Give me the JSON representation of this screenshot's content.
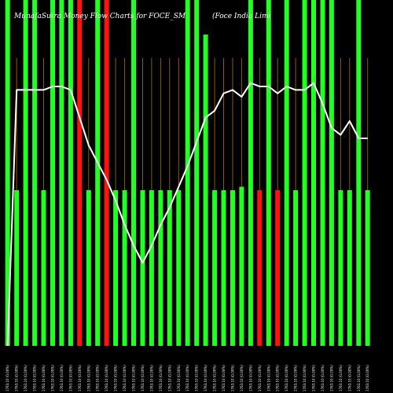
{
  "chart_data": {
    "type": "bar",
    "title": "MunafaSutra Money Flow Charts for FOCE_SM",
    "subtitle": "(Foce India Limi",
    "ylim": [
      0,
      100
    ],
    "colors": {
      "background": "#000000",
      "up": "#22ff22",
      "down": "#ff1111",
      "volume_line": "#8a5a12",
      "price_line": "#ffffff",
      "tick_text": "#ffffff"
    },
    "categories": [
      "1763.10 (0.00%)",
      "1763.10 (0.00%)",
      "1763.10 (0.00%)",
      "1763.10 (0.00%)",
      "1763.10 (0.00%)",
      "1763.10 (0.00%)",
      "1763.10 (0.00%)",
      "1763.10 (0.00%)",
      "1763.10 (0.00%)",
      "1763.10 (0.00%)",
      "1763.10 (0.00%)",
      "1763.10 (0.00%)",
      "1763.10 (0.00%)",
      "1763.10 (0.00%)",
      "1763.10 (0.00%)",
      "1763.10 (0.00%)",
      "1763.10 (0.00%)",
      "1763.10 (0.00%)",
      "1763.10 (0.00%)",
      "1763.10 (0.00%)",
      "1763.10 (0.00%)",
      "1763.10 (0.00%)",
      "1763.10 (0.00%)",
      "1763.10 (0.00%)",
      "1763.10 (0.00%)",
      "1763.10 (0.00%)",
      "1763.10 (0.00%)",
      "1763.10 (0.00%)",
      "1763.10 (0.00%)",
      "1763.10 (0.00%)",
      "1763.10 (0.00%)",
      "1763.10 (0.00%)",
      "1763.10 (0.00%)",
      "1763.10 (0.00%)",
      "1763.10 (0.00%)",
      "1763.10 (0.00%)",
      "1763.10 (0.00%)",
      "1763.10 (0.00%)",
      "1763.10 (0.00%)",
      "1763.10 (0.00%)",
      "1763.10 (0.00%)"
    ],
    "series": [
      {
        "values": [
          100,
          45,
          100,
          100,
          45,
          100,
          100,
          100,
          100,
          45,
          100,
          100,
          45,
          45,
          100,
          45,
          45,
          45,
          45,
          45,
          100,
          100,
          90,
          45,
          45,
          45,
          46,
          100,
          45,
          100,
          45,
          100,
          45,
          100,
          100,
          100,
          100,
          45,
          45,
          100,
          45
        ]
      },
      {
        "values": [
          1,
          1,
          1,
          1,
          1,
          1,
          1,
          1,
          1,
          1,
          1,
          1,
          1,
          1,
          1,
          1,
          1,
          1,
          1,
          1,
          1,
          1,
          1,
          1,
          1,
          1,
          1,
          1,
          1,
          1,
          1,
          1,
          1,
          1,
          1,
          1,
          1,
          1,
          1,
          1,
          1
        ]
      },
      {
        "values": [
          0,
          74,
          74,
          74,
          74,
          75,
          75,
          74,
          66,
          58,
          53,
          48,
          42,
          35,
          29,
          24,
          29,
          35,
          40,
          46,
          52,
          59,
          66,
          68,
          73,
          74,
          72,
          76,
          75,
          75,
          73,
          75,
          74,
          74,
          76,
          70,
          63,
          61,
          65,
          60,
          60
        ]
      }
    ],
    "bar_colors": [
      "green",
      "green",
      "green",
      "green",
      "green",
      "green",
      "green",
      "green",
      "red",
      "green",
      "green",
      "red",
      "green",
      "green",
      "green",
      "green",
      "green",
      "green",
      "green",
      "green",
      "green",
      "green",
      "green",
      "green",
      "green",
      "green",
      "green",
      "green",
      "red",
      "green",
      "red",
      "green",
      "green",
      "green",
      "green",
      "green",
      "green",
      "green",
      "green",
      "green",
      "green"
    ]
  }
}
